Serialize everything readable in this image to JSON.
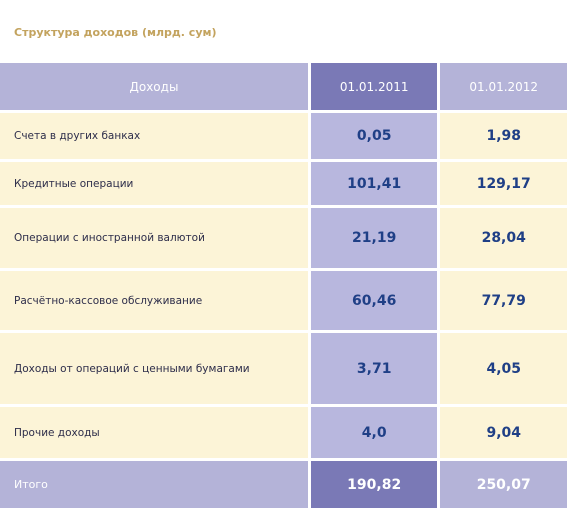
{
  "title": "Структура доходов (млрд. сум)",
  "table": {
    "headers": [
      "Доходы",
      "01.01.2011",
      "01.01.2012"
    ],
    "rows": [
      {
        "label": "Счета в других банках",
        "v2011": "0,05",
        "v2012": "1,98"
      },
      {
        "label": "Кредитные операции",
        "v2011": "101,41",
        "v2012": "129,17"
      },
      {
        "label": "Операции с иностранной валютой",
        "v2011": "21,19",
        "v2012": "28,04"
      },
      {
        "label": "Расчётно-кассовое обслуживание",
        "v2011": "60,46",
        "v2012": "77,79"
      },
      {
        "label": "Доходы от операций с ценными бумагами",
        "v2011": "3,71",
        "v2012": "4,05"
      },
      {
        "label": "Прочие доходы",
        "v2011": "4,0",
        "v2012": "9,04"
      }
    ],
    "total": {
      "label": "Итого",
      "v2011": "190,82",
      "v2012": "250,07"
    }
  }
}
